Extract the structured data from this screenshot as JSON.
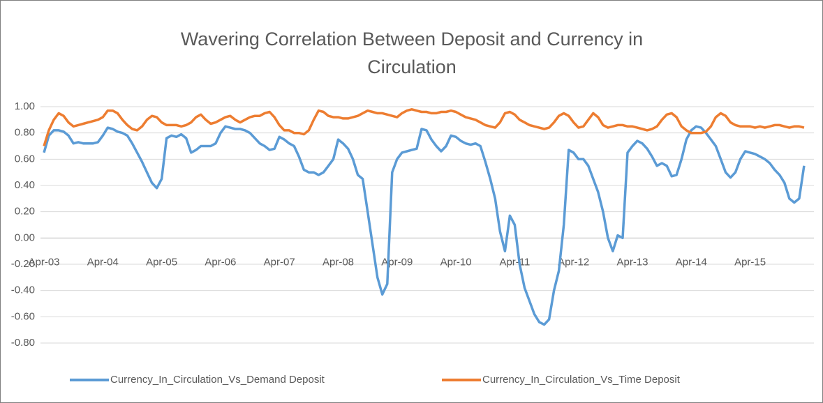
{
  "chart_data": {
    "type": "line",
    "title": "Wavering Correlation Between Deposit and Currency in Circulation",
    "categories": [
      "Apr-03",
      null,
      null,
      null,
      null,
      null,
      null,
      null,
      null,
      null,
      null,
      null,
      "Apr-04",
      null,
      null,
      null,
      null,
      null,
      null,
      null,
      null,
      null,
      null,
      null,
      "Apr-05",
      null,
      null,
      null,
      null,
      null,
      null,
      null,
      null,
      null,
      null,
      null,
      "Apr-06",
      null,
      null,
      null,
      null,
      null,
      null,
      null,
      null,
      null,
      null,
      null,
      "Apr-07",
      null,
      null,
      null,
      null,
      null,
      null,
      null,
      null,
      null,
      null,
      null,
      "Apr-08",
      null,
      null,
      null,
      null,
      null,
      null,
      null,
      null,
      null,
      null,
      null,
      "Apr-09",
      null,
      null,
      null,
      null,
      null,
      null,
      null,
      null,
      null,
      null,
      null,
      "Apr-10",
      null,
      null,
      null,
      null,
      null,
      null,
      null,
      null,
      null,
      null,
      null,
      "Apr-11",
      null,
      null,
      null,
      null,
      null,
      null,
      null,
      null,
      null,
      null,
      null,
      "Apr-12",
      null,
      null,
      null,
      null,
      null,
      null,
      null,
      null,
      null,
      null,
      null,
      "Apr-13",
      null,
      null,
      null,
      null,
      null,
      null,
      null,
      null,
      null,
      null,
      null,
      "Apr-14",
      null,
      null,
      null,
      null,
      null,
      null,
      null,
      null,
      null,
      null,
      null,
      "Apr-15",
      null,
      null,
      null,
      null,
      null,
      null,
      null,
      null,
      null,
      null,
      null
    ],
    "series": [
      {
        "name": "Currency_In_Circulation_Vs_Demand Deposit",
        "color": "#5b9bd5",
        "values": [
          0.65,
          0.78,
          0.82,
          0.82,
          0.81,
          0.78,
          0.72,
          0.73,
          0.72,
          0.72,
          0.72,
          0.73,
          0.78,
          0.84,
          0.83,
          0.81,
          0.8,
          0.78,
          0.72,
          0.65,
          0.58,
          0.5,
          0.42,
          0.38,
          0.45,
          0.76,
          0.78,
          0.77,
          0.79,
          0.76,
          0.65,
          0.67,
          0.7,
          0.7,
          0.7,
          0.72,
          0.8,
          0.85,
          0.84,
          0.83,
          0.83,
          0.82,
          0.8,
          0.76,
          0.72,
          0.7,
          0.67,
          0.68,
          0.77,
          0.75,
          0.72,
          0.7,
          0.62,
          0.52,
          0.5,
          0.5,
          0.48,
          0.5,
          0.55,
          0.6,
          0.75,
          0.72,
          0.68,
          0.6,
          0.48,
          0.45,
          0.2,
          -0.05,
          -0.3,
          -0.43,
          -0.35,
          0.5,
          0.6,
          0.65,
          0.66,
          0.67,
          0.68,
          0.83,
          0.82,
          0.75,
          0.7,
          0.66,
          0.7,
          0.78,
          0.77,
          0.74,
          0.72,
          0.71,
          0.72,
          0.7,
          0.58,
          0.45,
          0.3,
          0.05,
          -0.1,
          0.17,
          0.1,
          -0.2,
          -0.38,
          -0.48,
          -0.58,
          -0.64,
          -0.66,
          -0.62,
          -0.4,
          -0.25,
          0.1,
          0.67,
          0.65,
          0.6,
          0.6,
          0.55,
          0.45,
          0.35,
          0.2,
          0.0,
          -0.1,
          0.02,
          0.0,
          0.65,
          0.7,
          0.74,
          0.72,
          0.68,
          0.62,
          0.55,
          0.57,
          0.55,
          0.47,
          0.48,
          0.6,
          0.75,
          0.82,
          0.85,
          0.84,
          0.8,
          0.75,
          0.7,
          0.6,
          0.5,
          0.46,
          0.5,
          0.6,
          0.66,
          0.65,
          0.64,
          0.62,
          0.6,
          0.57,
          0.52,
          0.48,
          0.42,
          0.3,
          0.27,
          0.3,
          0.55
        ]
      },
      {
        "name": "Currency_In_Circulation_Vs_Time Deposit",
        "color": "#ed7d31",
        "values": [
          0.7,
          0.82,
          0.9,
          0.95,
          0.93,
          0.88,
          0.85,
          0.86,
          0.87,
          0.88,
          0.89,
          0.9,
          0.92,
          0.97,
          0.97,
          0.95,
          0.9,
          0.86,
          0.83,
          0.82,
          0.85,
          0.9,
          0.93,
          0.92,
          0.88,
          0.86,
          0.86,
          0.86,
          0.85,
          0.86,
          0.88,
          0.92,
          0.94,
          0.9,
          0.87,
          0.88,
          0.9,
          0.92,
          0.93,
          0.9,
          0.88,
          0.9,
          0.92,
          0.93,
          0.93,
          0.95,
          0.96,
          0.92,
          0.86,
          0.82,
          0.82,
          0.8,
          0.8,
          0.79,
          0.82,
          0.9,
          0.97,
          0.96,
          0.93,
          0.92,
          0.92,
          0.91,
          0.91,
          0.92,
          0.93,
          0.95,
          0.97,
          0.96,
          0.95,
          0.95,
          0.94,
          0.93,
          0.92,
          0.95,
          0.97,
          0.98,
          0.97,
          0.96,
          0.96,
          0.95,
          0.95,
          0.96,
          0.96,
          0.97,
          0.96,
          0.94,
          0.92,
          0.91,
          0.9,
          0.88,
          0.86,
          0.85,
          0.84,
          0.88,
          0.95,
          0.96,
          0.94,
          0.9,
          0.88,
          0.86,
          0.85,
          0.84,
          0.83,
          0.84,
          0.88,
          0.93,
          0.95,
          0.93,
          0.88,
          0.84,
          0.85,
          0.9,
          0.95,
          0.92,
          0.86,
          0.84,
          0.85,
          0.86,
          0.86,
          0.85,
          0.85,
          0.84,
          0.83,
          0.82,
          0.83,
          0.85,
          0.9,
          0.94,
          0.95,
          0.92,
          0.85,
          0.82,
          0.8,
          0.8,
          0.8,
          0.81,
          0.85,
          0.92,
          0.95,
          0.93,
          0.88,
          0.86,
          0.85,
          0.85,
          0.85,
          0.84,
          0.85,
          0.84,
          0.85,
          0.86,
          0.86,
          0.85,
          0.84,
          0.85,
          0.85,
          0.84
        ]
      }
    ],
    "ylim": [
      -0.8,
      1.0
    ],
    "yticks": [
      {
        "value": -0.8,
        "label": "-0.80"
      },
      {
        "value": -0.6,
        "label": "-0.60"
      },
      {
        "value": -0.4,
        "label": "-0.40"
      },
      {
        "value": -0.2,
        "label": "-0.20"
      },
      {
        "value": 0,
        "label": "0.00"
      },
      {
        "value": 0.2,
        "label": "0.20"
      },
      {
        "value": 0.4,
        "label": "0.40"
      },
      {
        "value": 0.6,
        "label": "0.60"
      },
      {
        "value": 0.8,
        "label": "0.80"
      },
      {
        "value": 1.0,
        "label": "1.00"
      }
    ],
    "grid": true,
    "legend": "bottom"
  }
}
